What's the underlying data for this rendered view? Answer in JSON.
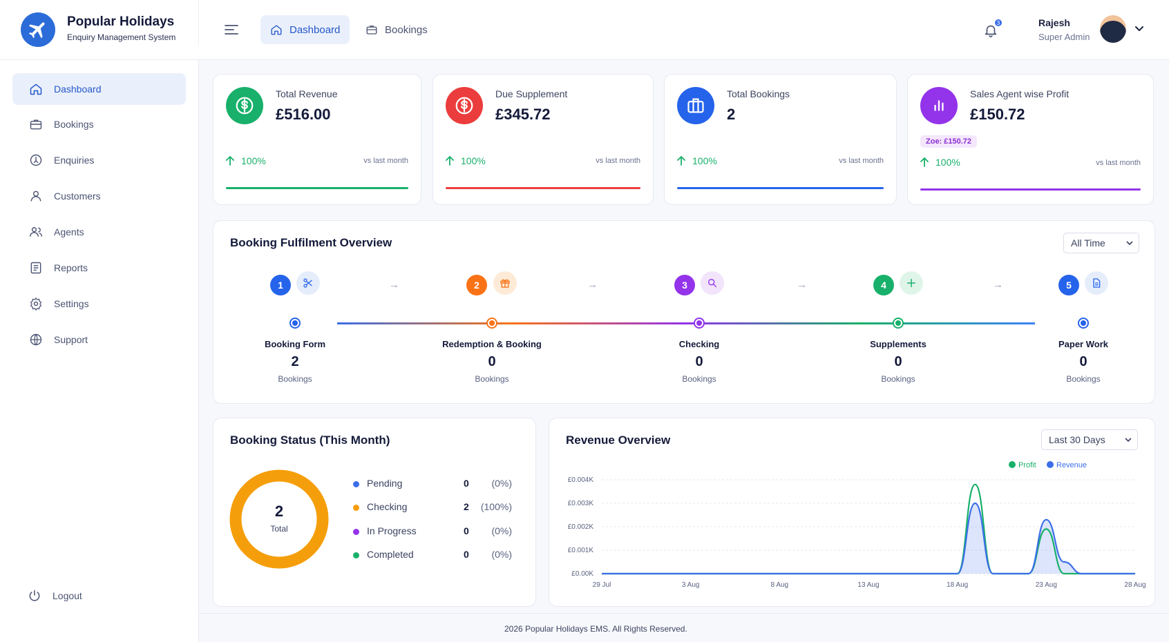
{
  "brand": {
    "title": "Popular Holidays",
    "subtitle": "Enquiry Management System"
  },
  "header": {
    "tabs": [
      {
        "label": "Dashboard",
        "active": true
      },
      {
        "label": "Bookings",
        "active": false
      }
    ],
    "notifications": "3",
    "user": {
      "name": "Rajesh",
      "role": "Super Admin"
    }
  },
  "sidebar": {
    "items": [
      {
        "label": "Dashboard",
        "icon": "home-icon"
      },
      {
        "label": "Bookings",
        "icon": "briefcase-icon"
      },
      {
        "label": "Enquiries",
        "icon": "enquiry-icon"
      },
      {
        "label": "Customers",
        "icon": "user-icon"
      },
      {
        "label": "Agents",
        "icon": "users-icon"
      },
      {
        "label": "Reports",
        "icon": "report-icon"
      },
      {
        "label": "Settings",
        "icon": "gear-icon"
      },
      {
        "label": "Support",
        "icon": "globe-icon"
      }
    ],
    "logout": "Logout"
  },
  "stats": [
    {
      "label": "Total Revenue",
      "value": "£516.00",
      "pct": "100%",
      "vs": "vs last month",
      "color": "#18b06a"
    },
    {
      "label": "Due Supplement",
      "value": "£345.72",
      "pct": "100%",
      "vs": "vs last month",
      "color": "#eb3d3d"
    },
    {
      "label": "Total Bookings",
      "value": "2",
      "pct": "100%",
      "vs": "vs last month",
      "color": "#2563eb"
    },
    {
      "label": "Sales Agent wise Profit",
      "value": "£150.72",
      "badge": "Zoe: £150.72",
      "pct": "100%",
      "vs": "vs last month",
      "color": "#9333ea"
    }
  ],
  "fulfilment": {
    "title": "Booking Fulfilment Overview",
    "filter": "All Time",
    "steps": [
      {
        "num": "1",
        "name": "Booking Form",
        "count": "2",
        "unit": "Bookings",
        "color": "#2563eb",
        "icon": "scissors-icon"
      },
      {
        "num": "2",
        "name": "Redemption & Booking",
        "count": "0",
        "unit": "Bookings",
        "color": "#f97316",
        "icon": "gift-icon"
      },
      {
        "num": "3",
        "name": "Checking",
        "count": "0",
        "unit": "Bookings",
        "color": "#9333ea",
        "icon": "search-icon"
      },
      {
        "num": "4",
        "name": "Supplements",
        "count": "0",
        "unit": "Bookings",
        "color": "#18b06a",
        "icon": "plus-icon"
      },
      {
        "num": "5",
        "name": "Paper Work",
        "count": "0",
        "unit": "Bookings",
        "color": "#2563eb",
        "icon": "document-icon"
      }
    ]
  },
  "booking_status": {
    "title": "Booking Status (This Month)",
    "total": "2",
    "total_label": "Total",
    "rows": [
      {
        "label": "Pending",
        "count": "0",
        "pct": "(0%)",
        "color": "#3b6ee8"
      },
      {
        "label": "Checking",
        "count": "2",
        "pct": "(100%)",
        "color": "#f59e0b"
      },
      {
        "label": "In Progress",
        "count": "0",
        "pct": "(0%)",
        "color": "#9333ea"
      },
      {
        "label": "Completed",
        "count": "0",
        "pct": "(0%)",
        "color": "#18b06a"
      }
    ]
  },
  "revenue": {
    "title": "Revenue Overview",
    "filter": "Last 30 Days"
  },
  "chart_data": {
    "type": "area",
    "x": [
      "29 Jul",
      "30 Jul",
      "31 Jul",
      "1 Aug",
      "2 Aug",
      "3 Aug",
      "4 Aug",
      "5 Aug",
      "6 Aug",
      "7 Aug",
      "8 Aug",
      "9 Aug",
      "10 Aug",
      "11 Aug",
      "12 Aug",
      "13 Aug",
      "14 Aug",
      "15 Aug",
      "16 Aug",
      "17 Aug",
      "18 Aug",
      "19 Aug",
      "20 Aug",
      "21 Aug",
      "22 Aug",
      "23 Aug",
      "24 Aug",
      "25 Aug",
      "26 Aug",
      "27 Aug",
      "28 Aug"
    ],
    "xticks": [
      "29 Jul",
      "3 Aug",
      "8 Aug",
      "13 Aug",
      "18 Aug",
      "23 Aug",
      "28 Aug"
    ],
    "yticks": [
      "£0.00K",
      "£0.001K",
      "£0.002K",
      "£0.003K",
      "£0.004K"
    ],
    "ylim": [
      0,
      0.004
    ],
    "series": [
      {
        "name": "Profit",
        "color": "#18b06a",
        "values": [
          0,
          0,
          0,
          0,
          0,
          0,
          0,
          0,
          0,
          0,
          0,
          0,
          0,
          0,
          0,
          0,
          0,
          0,
          0,
          0,
          0,
          0.0038,
          0,
          0,
          0,
          0.0019,
          0,
          0,
          0,
          0,
          0
        ]
      },
      {
        "name": "Revenue",
        "color": "#3b6ee8",
        "values": [
          0,
          0,
          0,
          0,
          0,
          0,
          0,
          0,
          0,
          0,
          0,
          0,
          0,
          0,
          0,
          0,
          0,
          0,
          0,
          0,
          0,
          0.003,
          0,
          0,
          0,
          0.0023,
          0.0005,
          0,
          0,
          0,
          0
        ]
      }
    ],
    "legend": "top-right",
    "grid": true
  },
  "footer": "2026 Popular Holidays EMS. All Rights Reserved."
}
